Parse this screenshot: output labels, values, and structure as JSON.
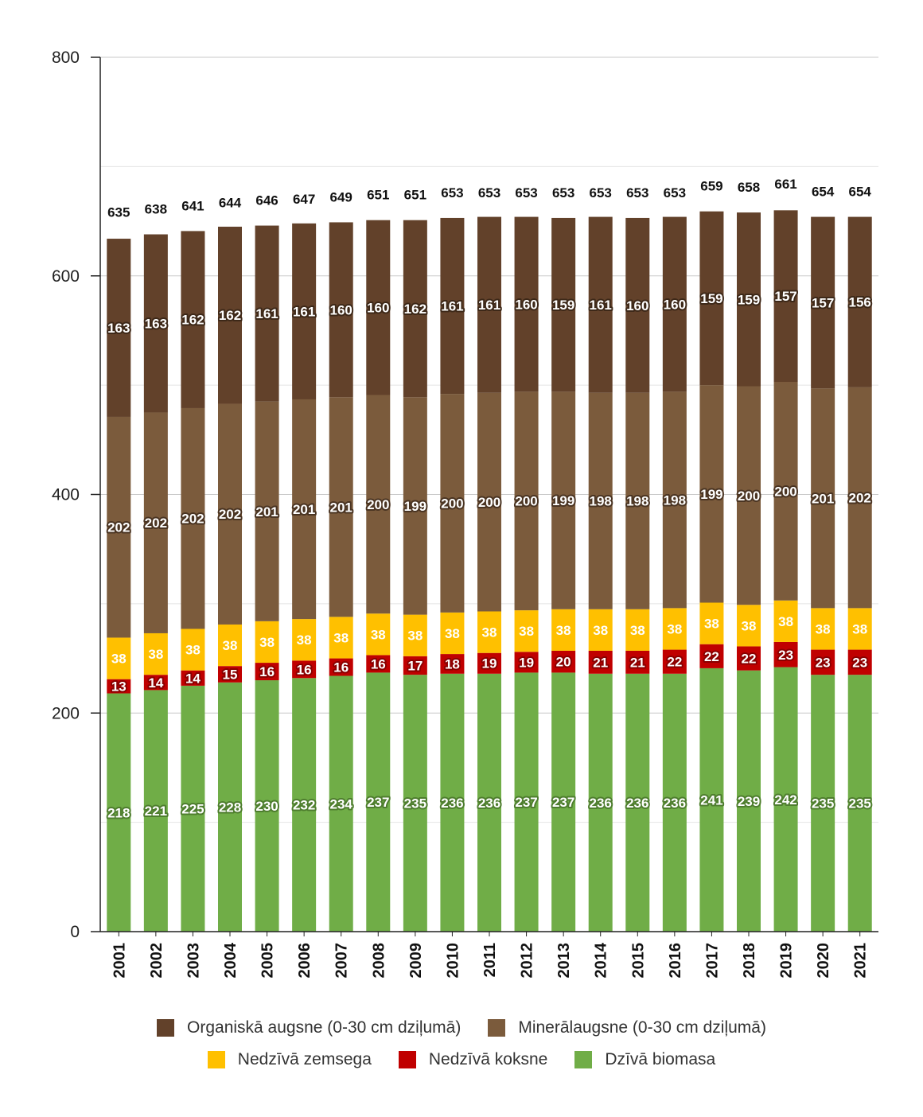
{
  "chart_data": {
    "type": "bar",
    "stacked": true,
    "title": "",
    "xlabel": "",
    "ylabel": "",
    "ylim": [
      0,
      800
    ],
    "yticks": [
      0,
      200,
      400,
      600,
      800
    ],
    "grid": true,
    "legend_position": "bottom",
    "categories": [
      "2001",
      "2002",
      "2003",
      "2004",
      "2005",
      "2006",
      "2007",
      "2008",
      "2009",
      "2010",
      "2011",
      "2012",
      "2013",
      "2014",
      "2015",
      "2016",
      "2017",
      "2018",
      "2019",
      "2020",
      "2021"
    ],
    "totals": [
      635,
      638,
      641,
      644,
      646,
      647,
      649,
      651,
      651,
      653,
      653,
      653,
      653,
      653,
      653,
      653,
      659,
      658,
      661,
      654,
      654
    ],
    "series": [
      {
        "name": "Dzīvā biomasa",
        "color": "#70ad47",
        "values": [
          218,
          221,
          225,
          228,
          230,
          232,
          234,
          237,
          235,
          236,
          236,
          237,
          237,
          236,
          236,
          236,
          241,
          239,
          242,
          235,
          235
        ]
      },
      {
        "name": "Nedzīvā koksne",
        "color": "#c00000",
        "values": [
          13,
          14,
          14,
          15,
          16,
          16,
          16,
          16,
          17,
          18,
          19,
          19,
          20,
          21,
          21,
          22,
          22,
          22,
          23,
          23,
          23
        ]
      },
      {
        "name": "Nedzīvā zemsega",
        "color": "#ffc000",
        "values": [
          38,
          38,
          38,
          38,
          38,
          38,
          38,
          38,
          38,
          38,
          38,
          38,
          38,
          38,
          38,
          38,
          38,
          38,
          38,
          38,
          38
        ]
      },
      {
        "name": "Minerālaugsne (0-30 cm dziļumā)",
        "color": "#7b5b3c",
        "values": [
          202,
          202,
          202,
          202,
          201,
          201,
          201,
          200,
          199,
          200,
          200,
          200,
          199,
          198,
          198,
          198,
          199,
          200,
          200,
          201,
          202
        ]
      },
      {
        "name": "Organiskā augsne (0-30 cm dziļumā)",
        "color": "#62412a",
        "values": [
          163,
          163,
          162,
          162,
          161,
          161,
          160,
          160,
          162,
          161,
          161,
          160,
          159,
          161,
          160,
          160,
          159,
          159,
          157,
          157,
          156
        ]
      }
    ],
    "legend_order": [
      4,
      3,
      2,
      1,
      0
    ]
  }
}
